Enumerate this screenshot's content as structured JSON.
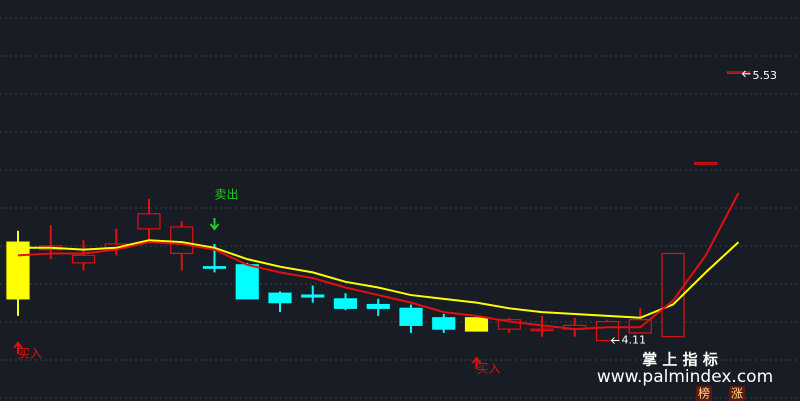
{
  "chart_data": {
    "type": "candlestick",
    "ylim": [
      3.79,
      5.91
    ],
    "grid": true,
    "candles": [
      {
        "open": 4.63,
        "high": 4.69,
        "low": 4.24,
        "close": 4.33,
        "color": "#ffff00",
        "filled": true
      },
      {
        "open": 4.59,
        "high": 4.72,
        "low": 4.54,
        "close": 4.61,
        "color": "#e01010",
        "filled": false
      },
      {
        "open": 4.52,
        "high": 4.64,
        "low": 4.48,
        "close": 4.56,
        "color": "#e01010",
        "filled": false
      },
      {
        "open": 4.6,
        "high": 4.7,
        "low": 4.56,
        "close": 4.62,
        "color": "#e01010",
        "filled": false
      },
      {
        "open": 4.7,
        "high": 4.86,
        "low": 4.64,
        "close": 4.78,
        "color": "#e01010",
        "filled": false
      },
      {
        "open": 4.71,
        "high": 4.74,
        "low": 4.48,
        "close": 4.57,
        "color": "#e01010",
        "filled": false
      },
      {
        "open": 4.5,
        "high": 4.62,
        "low": 4.47,
        "close": 4.5,
        "color": "#00ffff",
        "filled": true
      },
      {
        "open": 4.51,
        "high": 4.52,
        "low": 4.33,
        "close": 4.33,
        "color": "#00ffff",
        "filled": true
      },
      {
        "open": 4.36,
        "high": 4.37,
        "low": 4.26,
        "close": 4.31,
        "color": "#00ffff",
        "filled": true
      },
      {
        "open": 4.35,
        "high": 4.4,
        "low": 4.31,
        "close": 4.34,
        "color": "#00ffff",
        "filled": true
      },
      {
        "open": 4.33,
        "high": 4.36,
        "low": 4.27,
        "close": 4.28,
        "color": "#00ffff",
        "filled": true
      },
      {
        "open": 4.3,
        "high": 4.33,
        "low": 4.24,
        "close": 4.28,
        "color": "#00ffff",
        "filled": true
      },
      {
        "open": 4.28,
        "high": 4.3,
        "low": 4.15,
        "close": 4.19,
        "color": "#00ffff",
        "filled": true
      },
      {
        "open": 4.23,
        "high": 4.25,
        "low": 4.15,
        "close": 4.17,
        "color": "#00ffff",
        "filled": true
      },
      {
        "open": 4.23,
        "high": 4.23,
        "low": 4.16,
        "close": 4.16,
        "color": "#ffff00",
        "filled": true
      },
      {
        "open": 4.17,
        "high": 4.23,
        "low": 4.15,
        "close": 4.22,
        "color": "#e01010",
        "filled": false
      },
      {
        "open": 4.17,
        "high": 4.24,
        "low": 4.13,
        "close": 4.17,
        "color": "#e01010",
        "filled": false
      },
      {
        "open": 4.17,
        "high": 4.23,
        "low": 4.13,
        "close": 4.19,
        "color": "#e01010",
        "filled": false
      },
      {
        "open": 4.11,
        "high": 4.22,
        "low": 4.11,
        "close": 4.21,
        "color": "#e01010",
        "filled": false
      },
      {
        "open": 4.15,
        "high": 4.28,
        "low": 4.15,
        "close": 4.22,
        "color": "#e01010",
        "filled": false
      },
      {
        "open": 4.13,
        "high": 4.57,
        "low": 4.13,
        "close": 4.57,
        "color": "#e01010",
        "filled": false
      },
      {
        "open": 5.05,
        "high": 5.05,
        "low": 5.05,
        "close": 5.05,
        "color": "#e01010",
        "filled": false
      },
      {
        "open": 5.53,
        "high": 5.53,
        "low": 5.53,
        "close": 5.53,
        "color": "#e01010",
        "filled": false
      }
    ],
    "ma": [
      {
        "color": "#ffff00",
        "values": [
          4.6,
          4.6,
          4.59,
          4.6,
          4.64,
          4.63,
          4.6,
          4.54,
          4.5,
          4.47,
          4.42,
          4.39,
          4.35,
          4.33,
          4.31,
          4.28,
          4.26,
          4.25,
          4.24,
          4.23,
          4.3,
          4.47,
          4.63
        ]
      },
      {
        "color": "#e01010",
        "values": [
          4.56,
          4.57,
          4.57,
          4.59,
          4.63,
          4.62,
          4.59,
          4.51,
          4.47,
          4.44,
          4.39,
          4.35,
          4.31,
          4.26,
          4.24,
          4.21,
          4.19,
          4.17,
          4.18,
          4.18,
          4.32,
          4.56,
          4.89
        ]
      }
    ],
    "high_label_index": 22,
    "low_label_index": 18,
    "sell_signals": [
      {
        "label": "卖出",
        "index": 6
      }
    ],
    "buy_signals": [
      {
        "label": "买入",
        "index": 0
      },
      {
        "label": "买入",
        "index": 14
      }
    ]
  },
  "watermark": {
    "title": "掌 上 指 标",
    "url": "www.palmindex.com",
    "badges": [
      "榜",
      "涨"
    ]
  }
}
